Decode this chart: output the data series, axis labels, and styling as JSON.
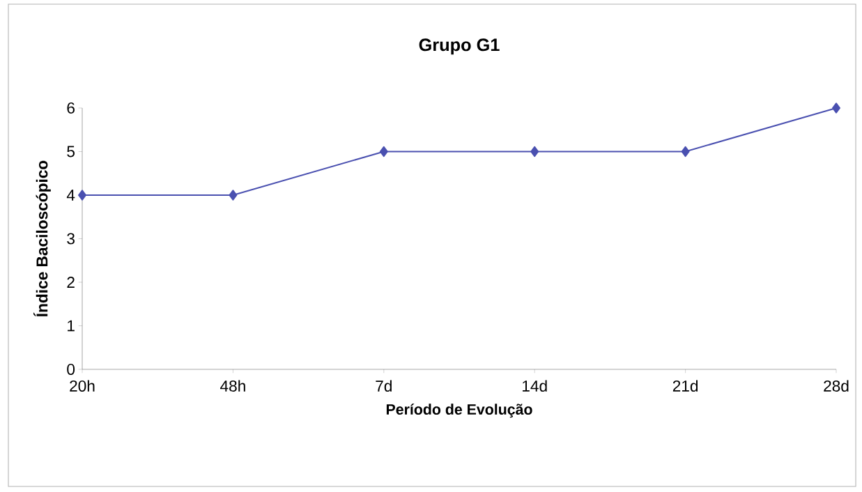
{
  "chart_data": {
    "type": "line",
    "title": "Grupo G1",
    "xlabel": "Período de Evolução",
    "ylabel": "Índice Baciloscópico",
    "categories": [
      "20h",
      "48h",
      "7d",
      "14d",
      "21d",
      "28d"
    ],
    "series": [
      {
        "color": "#4a50b0",
        "values": [
          4,
          4,
          5,
          5,
          5,
          6
        ]
      }
    ],
    "ylim": [
      0,
      6
    ],
    "yticks": [
      0,
      1,
      2,
      3,
      4,
      5,
      6
    ],
    "marker": "diamond",
    "line_style": "solid"
  }
}
